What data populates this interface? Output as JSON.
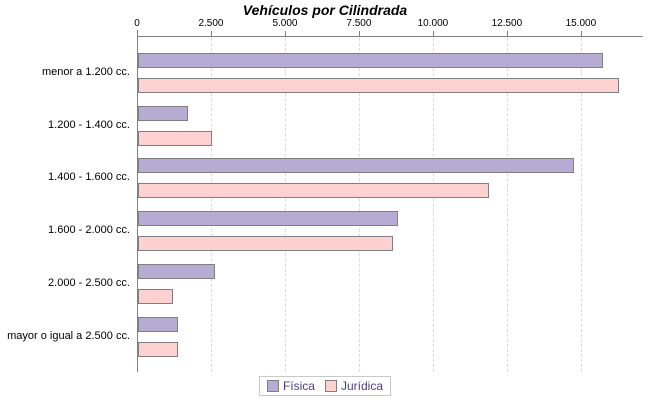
{
  "chart_data": {
    "type": "bar",
    "orientation": "horizontal",
    "title": "Vehículos por Cilindrada",
    "categories": [
      "menor a 1.200 cc.",
      "1.200 - 1.400 cc.",
      "1.400 - 1.600 cc.",
      "1.600 - 2.000 cc.",
      "2.000 - 2.500 cc.",
      "mayor o igual a 2.500 cc."
    ],
    "series": [
      {
        "name": "Física",
        "color": "#b5abd3",
        "values": [
          15700,
          1700,
          14720,
          8770,
          2610,
          1360
        ]
      },
      {
        "name": "Jurídica",
        "color": "#fcd1d0",
        "values": [
          16260,
          2510,
          11870,
          8630,
          1170,
          1340
        ]
      }
    ],
    "xticks": [
      0,
      2500,
      5000,
      7500,
      10000,
      12500,
      15000
    ],
    "xtick_labels": [
      "0",
      "2.500",
      "5.000",
      "7.500",
      "10.000",
      "12.500",
      "15.000"
    ],
    "xlim": [
      0,
      17100
    ],
    "grid": "vertical-dashed",
    "legend_position": "bottom-center",
    "colors": {
      "axis": "#808080",
      "gridline": "#d9d9d9",
      "bar_border": "#7f7f7f",
      "legend_text": "#483d8b",
      "title_text": "#000000"
    }
  }
}
